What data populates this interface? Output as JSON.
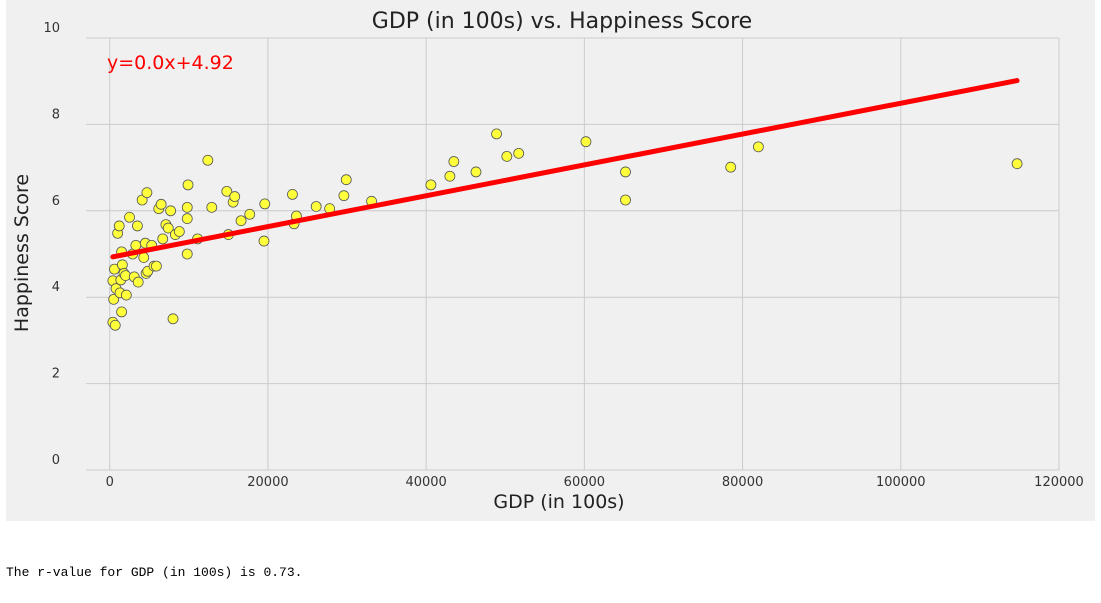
{
  "chart_data": {
    "type": "scatter",
    "title": "GDP (in 100s) vs. Happiness Score",
    "xlabel": "GDP (in 100s)",
    "ylabel": "Happiness Score",
    "xlim": [
      -3000,
      120000
    ],
    "ylim": [
      0,
      10
    ],
    "xticks": [
      0,
      20000,
      40000,
      60000,
      80000,
      100000,
      120000
    ],
    "yticks": [
      0,
      2,
      4,
      6,
      8,
      10
    ],
    "grid": true,
    "colors": {
      "background": "#f0f0f0",
      "grid": "#cbcbcb",
      "points": "#ffff3c",
      "point_edge": "#555555",
      "regression": "#ff0000",
      "equation": "#ff0000"
    },
    "series": [
      {
        "points": [
          [
            400,
            3.42
          ],
          [
            700,
            3.35
          ],
          [
            500,
            3.95
          ],
          [
            400,
            4.38
          ],
          [
            600,
            4.65
          ],
          [
            800,
            4.2
          ],
          [
            1000,
            5.48
          ],
          [
            1200,
            5.65
          ],
          [
            1300,
            4.1
          ],
          [
            1400,
            4.4
          ],
          [
            1500,
            3.66
          ],
          [
            1500,
            5.05
          ],
          [
            1600,
            4.75
          ],
          [
            1800,
            4.55
          ],
          [
            2000,
            4.5
          ],
          [
            2100,
            4.05
          ],
          [
            2500,
            5.85
          ],
          [
            2900,
            5.0
          ],
          [
            3100,
            4.47
          ],
          [
            3300,
            5.2
          ],
          [
            3500,
            5.65
          ],
          [
            3600,
            4.35
          ],
          [
            4100,
            6.25
          ],
          [
            4300,
            4.92
          ],
          [
            4500,
            5.25
          ],
          [
            4600,
            4.55
          ],
          [
            4700,
            6.42
          ],
          [
            4800,
            4.6
          ],
          [
            5300,
            5.2
          ],
          [
            5600,
            4.72
          ],
          [
            5900,
            4.72
          ],
          [
            6200,
            6.05
          ],
          [
            6500,
            6.15
          ],
          [
            6700,
            5.35
          ],
          [
            7100,
            5.68
          ],
          [
            7400,
            5.6
          ],
          [
            7700,
            6.0
          ],
          [
            8000,
            3.5
          ],
          [
            8300,
            5.45
          ],
          [
            8800,
            5.52
          ],
          [
            9800,
            5.0
          ],
          [
            9800,
            5.82
          ],
          [
            9800,
            6.08
          ],
          [
            9900,
            6.6
          ],
          [
            11100,
            5.35
          ],
          [
            12400,
            7.17
          ],
          [
            12900,
            6.08
          ],
          [
            14800,
            6.45
          ],
          [
            15000,
            5.45
          ],
          [
            15600,
            6.2
          ],
          [
            15800,
            6.33
          ],
          [
            16600,
            5.77
          ],
          [
            17700,
            5.92
          ],
          [
            19500,
            5.3
          ],
          [
            19600,
            6.16
          ],
          [
            23100,
            6.38
          ],
          [
            23300,
            5.7
          ],
          [
            23600,
            5.88
          ],
          [
            26100,
            6.1
          ],
          [
            27800,
            6.05
          ],
          [
            29600,
            6.35
          ],
          [
            29900,
            6.72
          ],
          [
            33100,
            6.22
          ],
          [
            40600,
            6.6
          ],
          [
            43000,
            6.8
          ],
          [
            43500,
            7.14
          ],
          [
            46300,
            6.9
          ],
          [
            48900,
            7.78
          ],
          [
            50200,
            7.26
          ],
          [
            51700,
            7.33
          ],
          [
            60200,
            7.6
          ],
          [
            65200,
            6.9
          ],
          [
            65200,
            6.25
          ],
          [
            78500,
            7.01
          ],
          [
            82000,
            7.48
          ],
          [
            114700,
            7.09
          ]
        ]
      }
    ],
    "regression": {
      "slope": 3.57e-05,
      "intercept": 4.92,
      "x_range": [
        400,
        114700
      ],
      "equation": "y=0.0x+4.92"
    }
  },
  "output": {
    "text": "The r-value for GDP (in 100s) is 0.73."
  }
}
